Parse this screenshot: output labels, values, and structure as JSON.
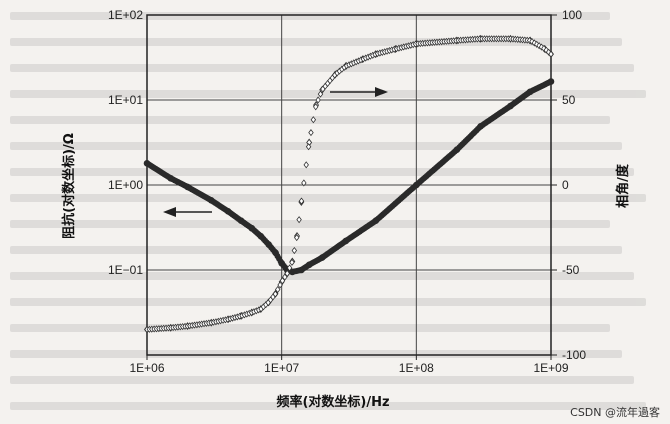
{
  "chart_data": {
    "type": "scatter",
    "title": "",
    "xlabel": "频率(对数坐标)/Hz",
    "ylabel_left": "阻抗(对数坐标)/Ω",
    "ylabel_right": "相角/度",
    "x_scale": "log",
    "y_left_scale": "log",
    "xlim": [
      1000000,
      1000000000
    ],
    "ylim_left": [
      0.01,
      100
    ],
    "ylim_right": [
      -100,
      100
    ],
    "grid": true,
    "x_ticks": [
      "1E+06",
      "1E+07",
      "1E+08",
      "1E+09"
    ],
    "y_left_ticks": [
      "1E+02",
      "1E+01",
      "1E+00",
      "1E−01"
    ],
    "y_right_ticks": [
      "100",
      "50",
      "0",
      "-50",
      "-100"
    ],
    "series": [
      {
        "axis": "left",
        "marker": "filled-circle",
        "x": [
          1000000,
          1500000,
          2000000,
          3000000,
          4000000,
          5000000,
          6000000,
          7000000,
          8000000,
          9000000,
          10000000,
          11000000,
          12000000,
          14000000,
          16000000,
          20000000,
          30000000,
          50000000,
          100000000,
          200000000,
          300000000,
          500000000,
          700000000,
          1000000000
        ],
        "y": [
          1.8,
          1.2,
          0.95,
          0.66,
          0.49,
          0.38,
          0.31,
          0.25,
          0.2,
          0.16,
          0.12,
          0.1,
          0.095,
          0.1,
          0.115,
          0.14,
          0.22,
          0.38,
          1.0,
          2.6,
          4.9,
          8.5,
          12.5,
          16.5
        ]
      },
      {
        "axis": "right",
        "marker": "open-diamond",
        "x": [
          1000000,
          1500000,
          2000000,
          3000000,
          4000000,
          5000000,
          6000000,
          7000000,
          8000000,
          9000000,
          10000000,
          11000000,
          12000000,
          13000000,
          14000000,
          16000000,
          18000000,
          20000000,
          25000000,
          30000000,
          40000000,
          50000000,
          70000000,
          100000000,
          200000000,
          300000000,
          500000000,
          700000000,
          900000000,
          1000000000
        ],
        "y": [
          -85,
          -84,
          -83,
          -81,
          -79,
          -77,
          -75,
          -73,
          -69,
          -64,
          -57,
          -52,
          -45,
          -30,
          -10,
          25,
          47,
          56,
          65,
          70,
          74,
          77,
          80,
          83,
          85,
          86,
          86,
          85,
          80,
          77
        ]
      }
    ],
    "annotations": [
      {
        "type": "arrow",
        "direction": "left",
        "points_to_axis": "left"
      },
      {
        "type": "arrow",
        "direction": "right",
        "points_to_axis": "right"
      }
    ]
  },
  "watermark": "CSDN @流年過客"
}
